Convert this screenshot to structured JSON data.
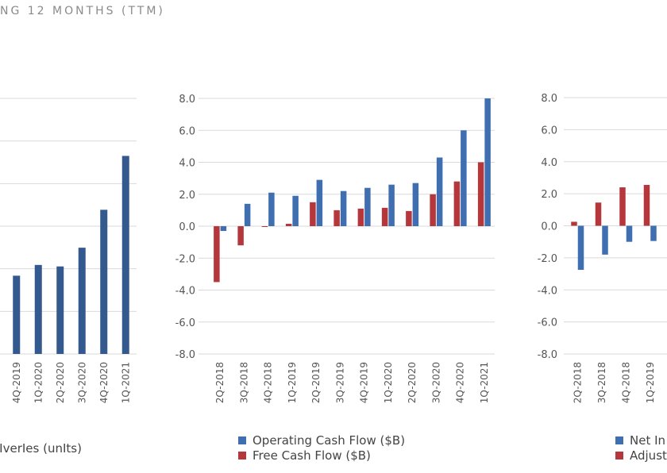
{
  "header": {
    "title": "NG 12 MONTHS (TTM)"
  },
  "colors": {
    "blue": "#3f6fb0",
    "red": "#b5373b",
    "navy": "#34598f",
    "grid": "#d9d9d9"
  },
  "chart_data": [
    {
      "type": "bar",
      "categories": [
        "4Q-2019",
        "1Q-2020",
        "2Q-2020",
        "3Q-2020",
        "4Q-2020",
        "1Q-2021"
      ],
      "series": [
        {
          "name": "Deliveries (units)",
          "values": [
            367500,
            418000,
            411000,
            499000,
            677000,
            930000
          ]
        }
      ],
      "ylim": [
        0,
        1200000
      ],
      "legend": [
        "lIverIes (unIts)"
      ],
      "grid": true
    },
    {
      "type": "bar",
      "categories": [
        "2Q-2018",
        "3Q-2018",
        "4Q-2018",
        "1Q-2019",
        "2Q-2019",
        "3Q-2019",
        "4Q-2019",
        "1Q-2020",
        "2Q-2020",
        "3Q-2020",
        "4Q-2020",
        "1Q-2021"
      ],
      "series": [
        {
          "name": "Operating Cash Flow ($B)",
          "values": [
            -0.3,
            1.4,
            2.1,
            1.9,
            2.9,
            2.2,
            2.4,
            2.6,
            2.7,
            4.3,
            6.0,
            8.0
          ]
        },
        {
          "name": "Free Cash Flow ($B)",
          "values": [
            -3.5,
            -1.2,
            -0.05,
            0.15,
            1.5,
            1.0,
            1.1,
            1.15,
            0.95,
            2.0,
            2.8,
            4.0
          ]
        }
      ],
      "yticks": [
        "8.0",
        "6.0",
        "4.0",
        "2.0",
        "0.0",
        "-2.0",
        "-4.0",
        "-6.0",
        "-8.0"
      ],
      "ylim": [
        -8,
        8
      ],
      "legend": [
        "Operating Cash Flow ($B)",
        "Free Cash Flow ($B)"
      ],
      "grid": true
    },
    {
      "type": "bar",
      "categories": [
        "2Q-2018",
        "3Q-2018",
        "4Q-2018",
        "1Q-2019"
      ],
      "series": [
        {
          "values": [
            -2.75,
            -1.8,
            -1.0,
            -0.95
          ]
        },
        {
          "values": [
            0.25,
            1.45,
            2.4,
            2.55
          ]
        }
      ],
      "yticks": [
        "8.0",
        "6.0",
        "4.0",
        "2.0",
        "0.0",
        "-2.0",
        "-4.0",
        "-6.0",
        "-8.0"
      ],
      "ylim": [
        -8,
        8
      ],
      "legend": [
        "Net In",
        "Adjust"
      ],
      "grid": true
    }
  ]
}
